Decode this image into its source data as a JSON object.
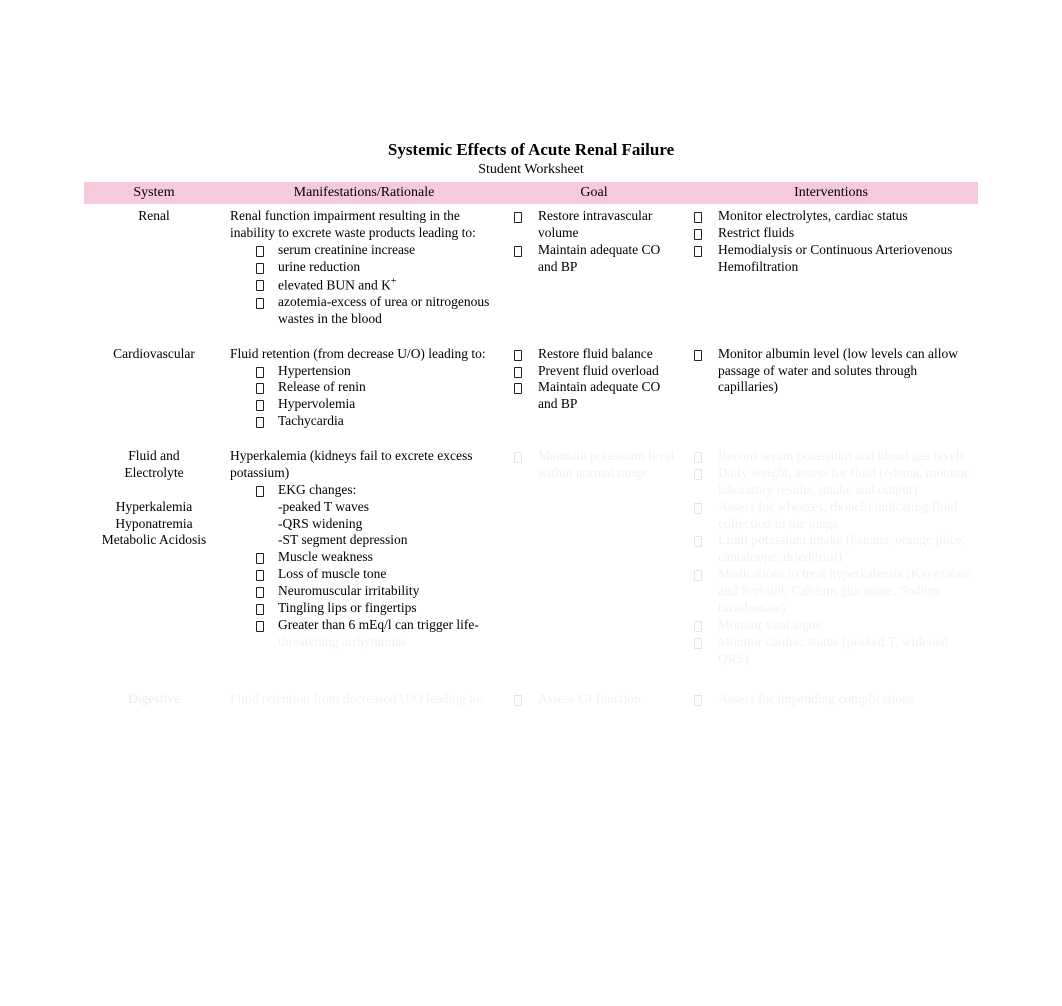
{
  "title": "Systemic Effects of Acute Renal Failure",
  "subtitle": "Student Worksheet",
  "headers": {
    "system": "System",
    "manifest": "Manifestations/Rationale",
    "goal": "Goal",
    "interventions": "Interventions"
  },
  "rows": {
    "renal": {
      "system": "Renal",
      "manifest_intro": "Renal function impairment resulting in the inability to excrete waste products leading to:",
      "manifest_items": [
        "serum creatinine increase",
        "urine reduction",
        "elevated BUN and K",
        "azotemia-excess of urea or nitrogenous wastes in the blood"
      ],
      "superscript": "+",
      "goals": [
        "Restore intravascular volume",
        "Maintain adequate CO and BP"
      ],
      "interventions": [
        "Monitor electrolytes, cardiac status",
        "Restrict fluids",
        "Hemodialysis or Continuous Arteriovenous Hemofiltration"
      ]
    },
    "cardio": {
      "system": "Cardiovascular",
      "manifest_intro": "Fluid retention (from decrease U/O) leading to:",
      "manifest_items": [
        "Hypertension",
        "Release of renin",
        "Hypervolemia",
        "Tachycardia"
      ],
      "goals": [
        "Restore fluid balance",
        "Prevent fluid overload",
        "Maintain adequate CO and BP"
      ],
      "interventions": [
        "Monitor albumin level (low levels can allow passage of water and solutes through capillaries)"
      ]
    },
    "fluid": {
      "system_lines": [
        "Fluid and",
        "Electrolyte",
        "",
        "Hyperkalemia",
        "Hyponatremia",
        "Metabolic Acidosis"
      ],
      "manifest_intro": "Hyperkalemia (kidneys fail to excrete excess potassium)",
      "ekg_label": "EKG changes:",
      "ekg_sub": [
        "-peaked T waves",
        "-QRS widening",
        "-ST segment depression"
      ],
      "manifest_items_after": [
        "Muscle weakness",
        "Loss of muscle tone",
        "Neuromuscular irritability",
        "Tingling lips or fingertips",
        "Greater than 6 mEq/l can trigger life-"
      ],
      "faded_tail": "threatening arrhythmias",
      "goals_faded": [
        "Maintain potassium level within normal range"
      ],
      "interventions_faded": [
        "Record serum potassium and blood gas levels",
        "Daily weight, assess for fluid (edema, monitor laboratory results, intake and output)",
        "Assess for wheezes, rhonchi indicating fluid collection in the lungs",
        "Limit potassium intake (banana, orange juice, cantaloupe, dried fruit)",
        "Medications to treat hyperkalemia (Kayexalate and Sorbitol, Calcium gluconate, Sodium bicarbonate)",
        "Monitor vital signs",
        "Monitor cardiac status (peaked T, widened QRS)"
      ]
    },
    "digestive": {
      "system": "Digestive",
      "manifest_intro": "Fluid retention from decreased U/O leading to:",
      "goals": [
        "Assess GI function"
      ],
      "interventions": [
        "Assess for impending complications"
      ]
    }
  },
  "colors": {
    "header_bg": "#f7c9dd",
    "text": "#000000",
    "faded": "rgba(0,0,0,0.06)"
  }
}
